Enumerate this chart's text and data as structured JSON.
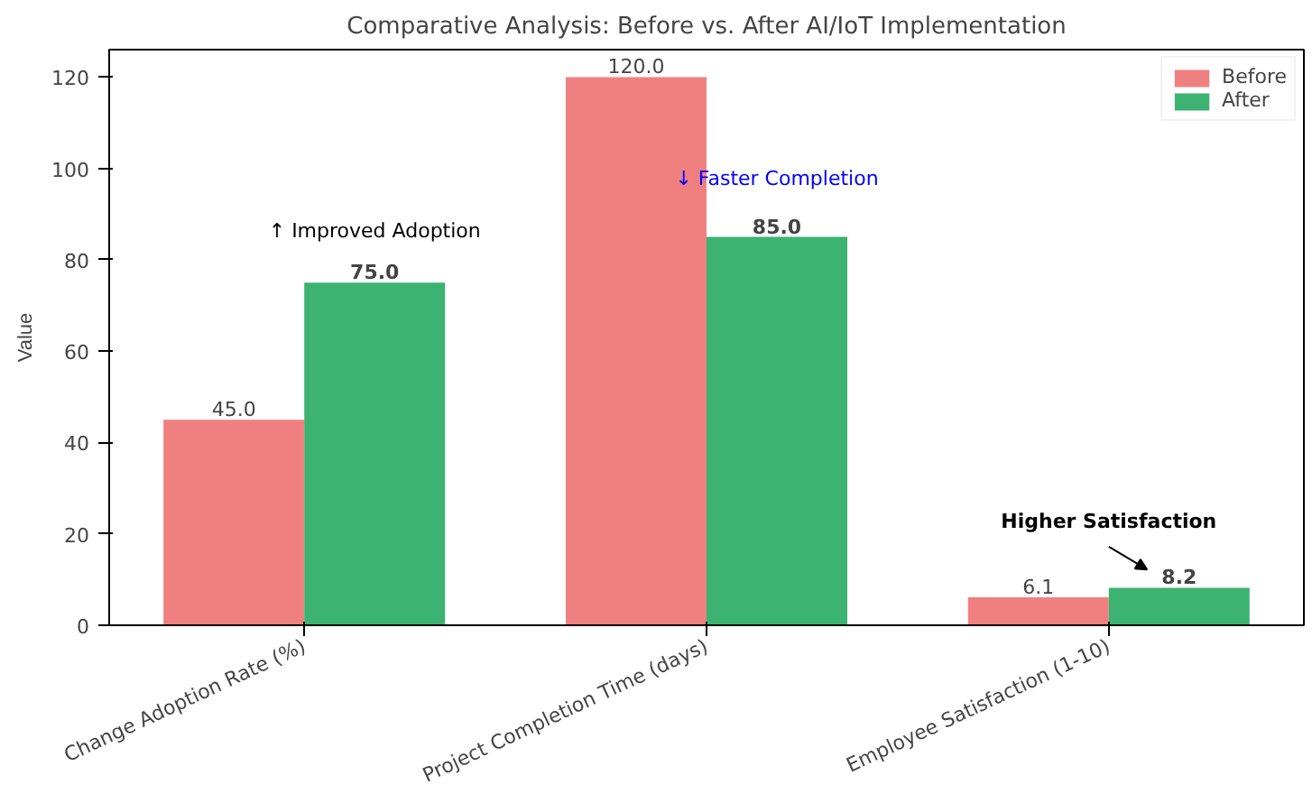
{
  "chart_data": {
    "type": "bar",
    "title": "Comparative Analysis: Before vs. After AI/IoT Implementation",
    "ylabel": "Value",
    "categories": [
      "Change Adoption Rate (%)",
      "Project Completion Time (days)",
      "Employee Satisfaction (1-10)"
    ],
    "series": [
      {
        "name": "Before",
        "color": "#f08080",
        "values": [
          45.0,
          120.0,
          6.1
        ],
        "value_labels": [
          "45.0",
          "120.0",
          "6.1"
        ]
      },
      {
        "name": "After",
        "color": "#3cb371",
        "values": [
          75.0,
          85.0,
          8.2
        ],
        "value_labels": [
          "75.0",
          "85.0",
          "8.2"
        ]
      }
    ],
    "ylim": [
      0,
      126
    ],
    "yticks": [
      0,
      20,
      40,
      60,
      80,
      100,
      120
    ],
    "annotations": [
      "↑ Improved Adoption",
      "↓ Faster Completion",
      "Higher Satisfaction"
    ],
    "legend": "top right",
    "grid": false
  }
}
